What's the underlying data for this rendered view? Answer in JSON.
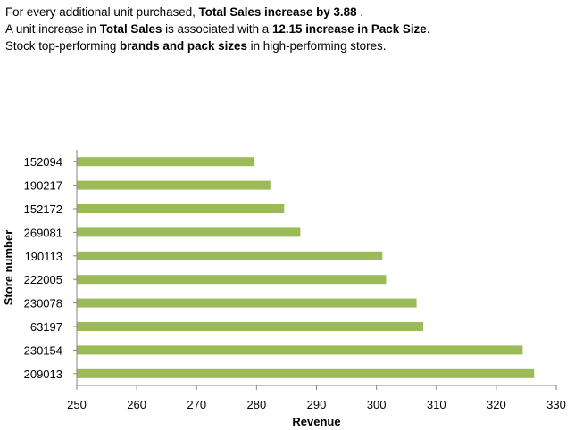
{
  "insights": [
    [
      {
        "t": "For every additional unit purchased, ",
        "b": false
      },
      {
        "t": "Total Sales increase by 3.88",
        "b": true
      },
      {
        "t": " .",
        "b": false
      }
    ],
    [
      {
        "t": "A unit increase in ",
        "b": false
      },
      {
        "t": "Total Sales",
        "b": true
      },
      {
        "t": " is associated with a ",
        "b": false
      },
      {
        "t": "12.15 increase in Pack Size",
        "b": true
      },
      {
        "t": ".",
        "b": false
      }
    ],
    [
      {
        "t": "Stock top-performing ",
        "b": false
      },
      {
        "t": "brands and pack sizes",
        "b": true
      },
      {
        "t": " in high-performing stores.",
        "b": false
      }
    ]
  ],
  "chart_data": {
    "type": "bar",
    "orientation": "horizontal",
    "categories": [
      "152094",
      "190217",
      "152172",
      "269081",
      "190113",
      "222005",
      "230078",
      "63197",
      "230154",
      "209013"
    ],
    "values": [
      279.5,
      282.3,
      284.6,
      287.3,
      301.0,
      301.6,
      306.7,
      307.8,
      324.4,
      326.3
    ],
    "xlabel": "Revenue",
    "ylabel": "Store number",
    "xlim": [
      250,
      330
    ],
    "xticks": [
      250,
      260,
      270,
      280,
      290,
      300,
      310,
      320,
      330
    ],
    "grid": false,
    "legend": "none",
    "bar_color": "#9BBB59"
  }
}
